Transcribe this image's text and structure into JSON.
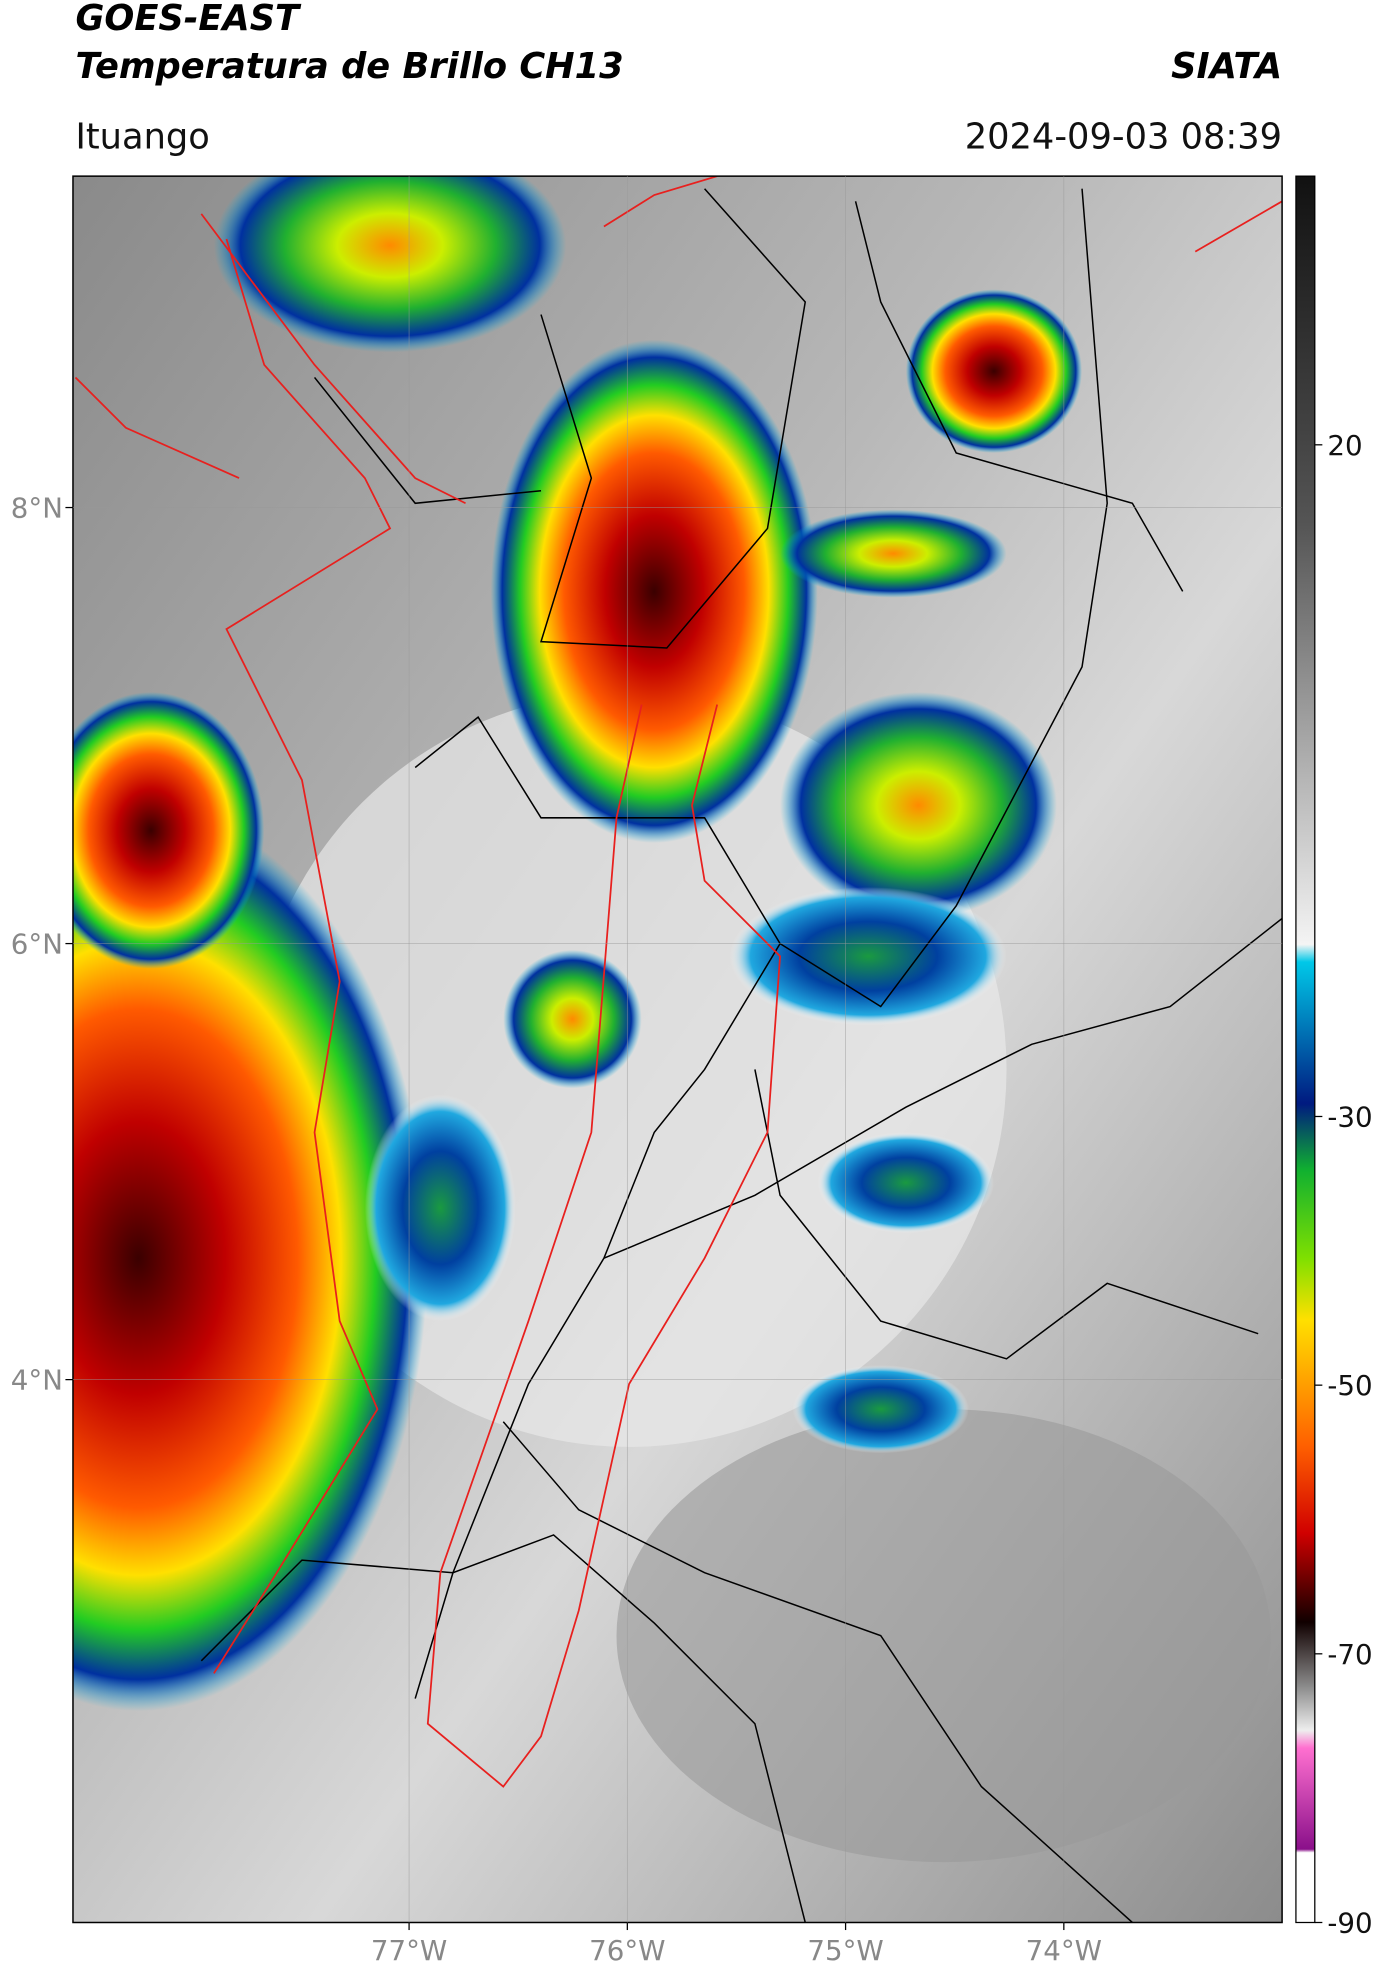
{
  "map": {
    "title": "GOES-EAST",
    "subtitle": "Temperatura de Brillo CH13",
    "agency": "SIATA",
    "location": "Ituango",
    "timestamp": "2024-09-03 08:39",
    "xlim": [
      -78.54,
      -73.0
    ],
    "ylim": [
      1.51,
      9.52
    ],
    "xticks": [
      {
        "value": -77,
        "label": "77°W"
      },
      {
        "value": -76,
        "label": "76°W"
      },
      {
        "value": -75,
        "label": "75°W"
      },
      {
        "value": -74,
        "label": "74°W"
      }
    ],
    "yticks": [
      {
        "value": 8,
        "label": "8°N"
      },
      {
        "value": 6,
        "label": "6°N"
      },
      {
        "value": 4,
        "label": "4°N"
      }
    ],
    "colorbar": {
      "lim": [
        -90,
        40
      ],
      "ticks": [
        20,
        -30,
        -50,
        -70,
        -90
      ]
    }
  }
}
